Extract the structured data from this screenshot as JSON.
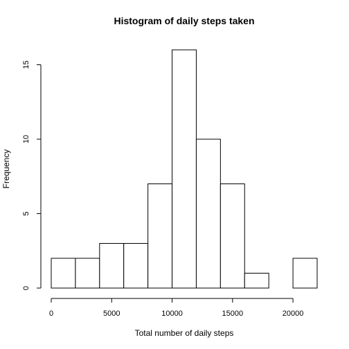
{
  "chart_data": {
    "type": "bar",
    "title": "Histogram of daily steps taken",
    "xlabel": "Total number of daily steps",
    "ylabel": "Frequency",
    "bins": [
      {
        "start": 0,
        "end": 2000,
        "count": 2
      },
      {
        "start": 2000,
        "end": 4000,
        "count": 2
      },
      {
        "start": 4000,
        "end": 6000,
        "count": 3
      },
      {
        "start": 6000,
        "end": 8000,
        "count": 3
      },
      {
        "start": 8000,
        "end": 10000,
        "count": 7
      },
      {
        "start": 10000,
        "end": 12000,
        "count": 16
      },
      {
        "start": 12000,
        "end": 14000,
        "count": 10
      },
      {
        "start": 14000,
        "end": 16000,
        "count": 7
      },
      {
        "start": 16000,
        "end": 18000,
        "count": 1
      },
      {
        "start": 18000,
        "end": 20000,
        "count": 0
      },
      {
        "start": 20000,
        "end": 22000,
        "count": 2
      }
    ],
    "xlim": [
      0,
      22000
    ],
    "ylim": [
      0,
      16
    ],
    "x_ticks": [
      0,
      5000,
      10000,
      15000,
      20000
    ],
    "y_ticks": [
      0,
      5,
      10,
      15
    ],
    "bar_fill": "#ffffff",
    "bar_stroke": "#000000",
    "grid": false,
    "legend": "none"
  }
}
